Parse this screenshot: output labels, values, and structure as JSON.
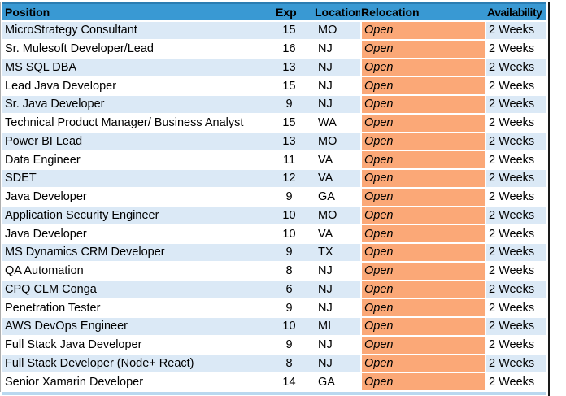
{
  "table": {
    "columns": [
      "Position",
      "Exp",
      "Location",
      "Relocation",
      "Availability"
    ],
    "rows": [
      {
        "position": "MicroStrategy Consultant",
        "exp": "15",
        "location": "MO",
        "relocation": "Open",
        "availability": "2 Weeks"
      },
      {
        "position": "Sr. Mulesoft Developer/Lead",
        "exp": "16",
        "location": "NJ",
        "relocation": "Open",
        "availability": "2 Weeks"
      },
      {
        "position": "MS SQL DBA",
        "exp": "13",
        "location": "NJ",
        "relocation": "Open",
        "availability": "2 Weeks"
      },
      {
        "position": "Lead Java Developer",
        "exp": "15",
        "location": "NJ",
        "relocation": "Open",
        "availability": "2 Weeks"
      },
      {
        "position": "Sr. Java Developer",
        "exp": "9",
        "location": "NJ",
        "relocation": "Open",
        "availability": "2 Weeks"
      },
      {
        "position": "Technical Product Manager/ Business Analyst",
        "exp": "15",
        "location": "WA",
        "relocation": "Open",
        "availability": "2 Weeks"
      },
      {
        "position": "Power BI Lead",
        "exp": "13",
        "location": "MO",
        "relocation": "Open",
        "availability": "2 Weeks"
      },
      {
        "position": "Data Engineer",
        "exp": "11",
        "location": "VA",
        "relocation": "Open",
        "availability": "2 Weeks"
      },
      {
        "position": "SDET",
        "exp": "12",
        "location": "VA",
        "relocation": "Open",
        "availability": "2 Weeks"
      },
      {
        "position": "Java Developer",
        "exp": "9",
        "location": "GA",
        "relocation": "Open",
        "availability": "2 Weeks"
      },
      {
        "position": "Application Security Engineer",
        "exp": "10",
        "location": "MO",
        "relocation": "Open",
        "availability": "2 Weeks"
      },
      {
        "position": "Java Developer",
        "exp": "10",
        "location": "VA",
        "relocation": "Open",
        "availability": "2 Weeks"
      },
      {
        "position": "MS Dynamics CRM Developer",
        "exp": "9",
        "location": "TX",
        "relocation": "Open",
        "availability": "2 Weeks"
      },
      {
        "position": "QA Automation",
        "exp": "8",
        "location": "NJ",
        "relocation": "Open",
        "availability": "2 Weeks"
      },
      {
        "position": "CPQ CLM Conga",
        "exp": "6",
        "location": "NJ",
        "relocation": "Open",
        "availability": "2 Weeks"
      },
      {
        "position": "Penetration Tester",
        "exp": "9",
        "location": "NJ",
        "relocation": "Open",
        "availability": "2 Weeks"
      },
      {
        "position": "AWS DevOps Engineer",
        "exp": "10",
        "location": "MI",
        "relocation": "Open",
        "availability": "2 Weeks"
      },
      {
        "position": "Full Stack Java Developer",
        "exp": "9",
        "location": "NJ",
        "relocation": "Open",
        "availability": "2 Weeks"
      },
      {
        "position": "Full Stack Developer (Node+ React)",
        "exp": "8",
        "location": "NJ",
        "relocation": "Open",
        "availability": "2 Weeks"
      },
      {
        "position": "Senior Xamarin Developer",
        "exp": "14",
        "location": "GA",
        "relocation": "Open",
        "availability": "2 Weeks"
      }
    ]
  },
  "colors": {
    "header_bg": "#3999D3",
    "header_top_border": "#2B7DB2",
    "band_row_bg": "#DBE9F6",
    "white_row_bg": "#FFFFFF",
    "relocation_bg": "#FBA877",
    "bottom_edge": "#B9D8EF",
    "right_border": "#1A1A1A",
    "left_border": "#ADADAD",
    "text": "#000000"
  }
}
